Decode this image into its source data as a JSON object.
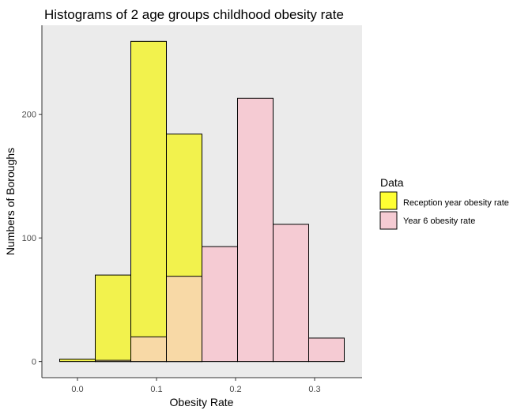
{
  "chart_data": {
    "type": "histogram",
    "title": "Histograms of 2 age groups childhood obesity rate",
    "xlabel": "Obesity Rate",
    "ylabel": "Numbers of Boroughs",
    "xlim": [
      -0.045,
      0.36
    ],
    "ylim": [
      -13,
      272
    ],
    "x_ticks": [
      0.0,
      0.1,
      0.2,
      0.3
    ],
    "x_tick_labels": [
      "0.0",
      "0.1",
      "0.2",
      "0.3"
    ],
    "y_ticks": [
      0,
      100,
      200
    ],
    "y_tick_labels": [
      "0",
      "100",
      "200"
    ],
    "bin_edges": [
      -0.0225,
      0.0225,
      0.0675,
      0.1125,
      0.1575,
      0.2025,
      0.2475,
      0.2925,
      0.3375
    ],
    "series": [
      {
        "name": "Reception year obesity rate",
        "color": "#f2f24d",
        "values": [
          2,
          70,
          259,
          184,
          0,
          0,
          0,
          0
        ]
      },
      {
        "name": "Year 6 obesity rate",
        "color": "#f5cbd3",
        "values": [
          0,
          1,
          20,
          69,
          93,
          213,
          111,
          19
        ]
      }
    ],
    "overlap_color": "#f8d9a6",
    "legend": {
      "title": "Data",
      "position": "right"
    },
    "panel_background": "#ebebeb",
    "grid": false
  }
}
